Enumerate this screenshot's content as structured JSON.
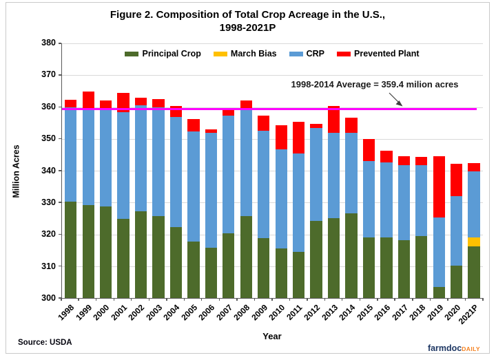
{
  "figure": {
    "title_line1": "Figure 2. Composition of Total Crop Acreage in the U.S.,",
    "title_line2": "1998-2021P",
    "source": "Source: USDA",
    "brand": {
      "name": "farmdoc",
      "suffix": "DAILY"
    }
  },
  "colors": {
    "principal_crop": "#4D6B2B",
    "march_bias": "#FFC000",
    "crp": "#5B9BD5",
    "prevented_plant": "#FF0000",
    "average_line": "#FF00FF",
    "gridline": "#D9D9D9",
    "axis": "#595959",
    "brand_navy": "#1F3864",
    "brand_orange": "#F58220"
  },
  "chart_data": {
    "type": "bar",
    "stacked": true,
    "first_series_absolute": true,
    "title": "Figure 2. Composition of Total Crop Acreage in the U.S., 1998-2021P",
    "xlabel": "Year",
    "ylabel": "Million Acres",
    "ylim": [
      300,
      380
    ],
    "ytick_step": 10,
    "grid": true,
    "legend_position": "top-center",
    "categories": [
      "1998",
      "1999",
      "2000",
      "2001",
      "2002",
      "2003",
      "2004",
      "2005",
      "2006",
      "2007",
      "2008",
      "2009",
      "2010",
      "2011",
      "2012",
      "2013",
      "2014",
      "2015",
      "2016",
      "2017",
      "2018",
      "2019",
      "2020",
      "2021P"
    ],
    "series": [
      {
        "name": "Principal Crop",
        "color": "#4D6B2B",
        "values": [
          330.2,
          329.3,
          328.8,
          324.9,
          327.3,
          325.7,
          322.3,
          317.7,
          315.7,
          320.4,
          325.7,
          318.9,
          315.5,
          314.4,
          324.3,
          325.0,
          326.5,
          319.0,
          319.0,
          318.2,
          319.4,
          303.4,
          310.1,
          316.3
        ]
      },
      {
        "name": "March Bias",
        "color": "#FFC000",
        "values": [
          0,
          0,
          0,
          0,
          0,
          0,
          0,
          0,
          0,
          0,
          0,
          0,
          0,
          0,
          0,
          0,
          0,
          0,
          0,
          0,
          0,
          0,
          0,
          2.7
        ]
      },
      {
        "name": "CRP",
        "color": "#5B9BD5",
        "values": [
          29.8,
          30.0,
          30.8,
          33.4,
          33.3,
          34.2,
          34.6,
          34.7,
          36.1,
          36.8,
          33.9,
          33.6,
          31.3,
          31.0,
          29.2,
          26.8,
          25.5,
          24.1,
          23.7,
          23.6,
          22.4,
          22.0,
          22.0,
          20.8
        ]
      },
      {
        "name": "Prevented Plant",
        "color": "#FF0000",
        "values": [
          2.2,
          5.5,
          2.4,
          6.2,
          2.4,
          2.6,
          3.4,
          3.9,
          1.2,
          2.3,
          2.4,
          4.8,
          7.4,
          10.0,
          1.2,
          8.6,
          4.6,
          6.9,
          3.5,
          2.7,
          2.5,
          19.2,
          10.1,
          2.5
        ]
      }
    ],
    "reference_line": {
      "value": 359.4,
      "label": "1998-2014 Average = 359.4 milion acres"
    }
  }
}
